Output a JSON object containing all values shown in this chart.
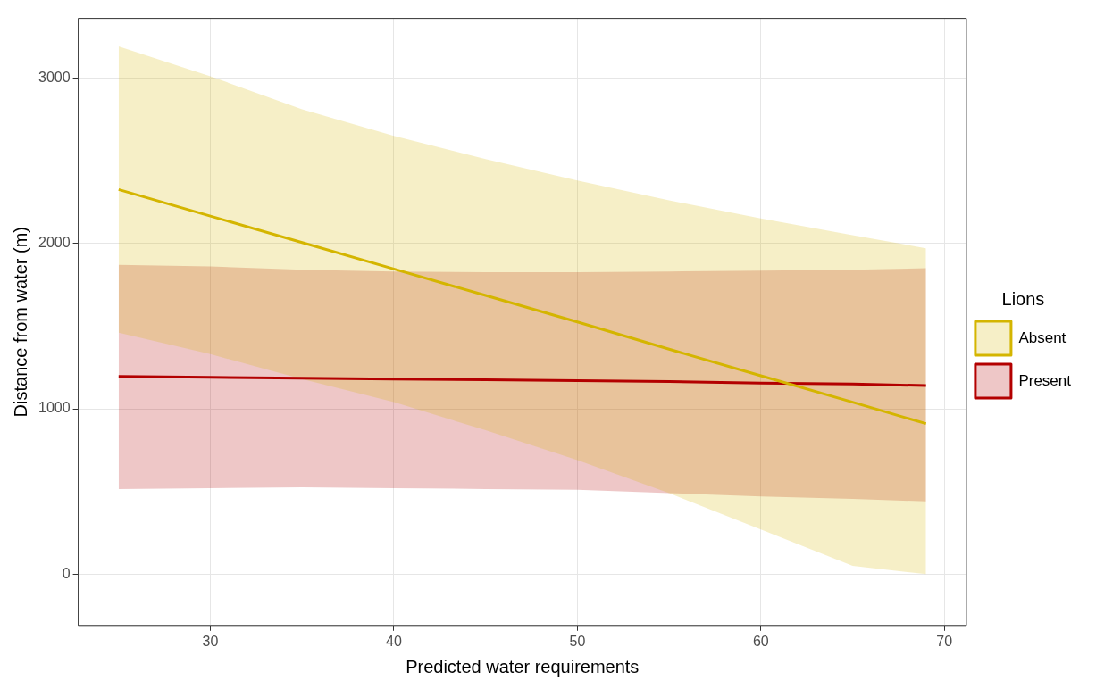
{
  "chart_data": {
    "type": "line",
    "xlabel": "Predicted water requirements",
    "ylabel": "Distance from water (m)",
    "legend_title": "Lions",
    "legend": "right",
    "grid": true,
    "marker": "none",
    "line_style": "solid",
    "x": [
      25,
      30,
      35,
      40,
      45,
      50,
      55,
      60,
      65,
      69
    ],
    "xlim": [
      22.8,
      71.2
    ],
    "xticks": [
      30,
      40,
      50,
      60,
      70
    ],
    "ylim": [
      -310,
      3360
    ],
    "yticks": [
      0,
      1000,
      2000,
      3000
    ],
    "series": [
      {
        "name": "Absent",
        "color": "#d4b500",
        "values": [
          2325,
          2165,
          2005,
          1845,
          1685,
          1525,
          1360,
          1200,
          1040,
          910
        ],
        "lower": [
          1460,
          1330,
          1180,
          1040,
          870,
          690,
          490,
          270,
          50,
          0
        ],
        "upper": [
          3190,
          3010,
          2810,
          2650,
          2510,
          2380,
          2260,
          2150,
          2050,
          1970
        ]
      },
      {
        "name": "Present",
        "color": "#b30000",
        "values": [
          1195,
          1190,
          1185,
          1180,
          1175,
          1170,
          1165,
          1155,
          1150,
          1140
        ],
        "lower": [
          515,
          520,
          525,
          520,
          515,
          510,
          490,
          470,
          455,
          440
        ],
        "upper": [
          1870,
          1860,
          1840,
          1830,
          1825,
          1825,
          1830,
          1835,
          1840,
          1850
        ]
      }
    ]
  }
}
